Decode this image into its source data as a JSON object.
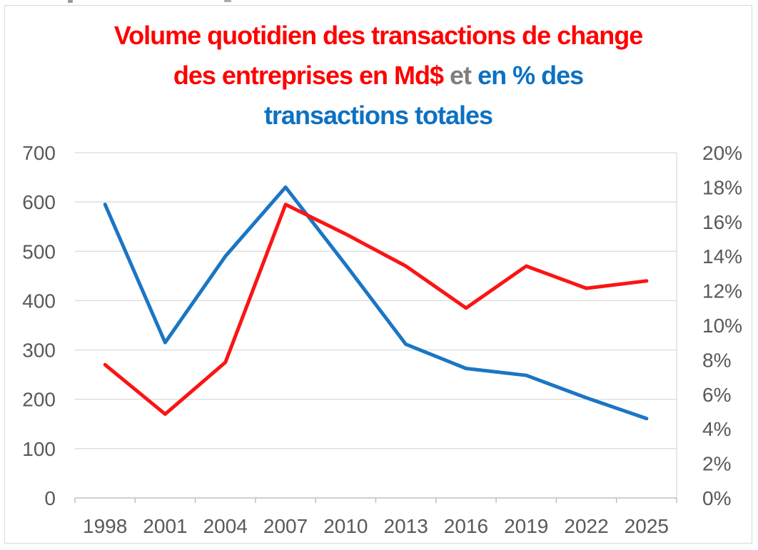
{
  "title": {
    "line1_red": "Volume quotidien des transactions de change",
    "line2_red": "des entreprises en Md$",
    "line2_gray": "et",
    "line2_blue": "en % des",
    "line3_blue": "transactions totales",
    "red_color": "#ff0000",
    "gray_color": "#7f7f7f",
    "blue_color": "#0d71c2"
  },
  "chart_data": {
    "type": "line",
    "title": "Volume quotidien des transactions de change des entreprises en Md$ et en % des transactions totales",
    "categories": [
      "1998",
      "2001",
      "2004",
      "2007",
      "2010",
      "2013",
      "2016",
      "2019",
      "2022",
      "2025"
    ],
    "series": [
      {
        "name": "Volume quotidien des transactions de change des entreprises (Md$)",
        "axis": "left",
        "color": "#fb1414",
        "values": [
          270,
          170,
          275,
          595,
          535,
          470,
          385,
          470,
          425,
          440
        ]
      },
      {
        "name": "En % des transactions totales",
        "axis": "right",
        "color": "#1b76c3",
        "values": [
          17,
          9,
          14,
          18,
          13.5,
          8.9,
          7.5,
          7.1,
          5.8,
          4.6
        ]
      }
    ],
    "y_left": {
      "min": 0,
      "max": 700,
      "ticks": [
        "0",
        "100",
        "200",
        "300",
        "400",
        "500",
        "600",
        "700"
      ]
    },
    "y_right": {
      "min": 0,
      "max": 20,
      "ticks": [
        "0%",
        "2%",
        "4%",
        "6%",
        "8%",
        "10%",
        "12%",
        "14%",
        "16%",
        "18%",
        "20%"
      ]
    },
    "grid": true,
    "legend": "none",
    "axis_label_color": "#595959",
    "gridline_color": "#d9d9d9",
    "axis_line_color": "#bfbfbf"
  }
}
